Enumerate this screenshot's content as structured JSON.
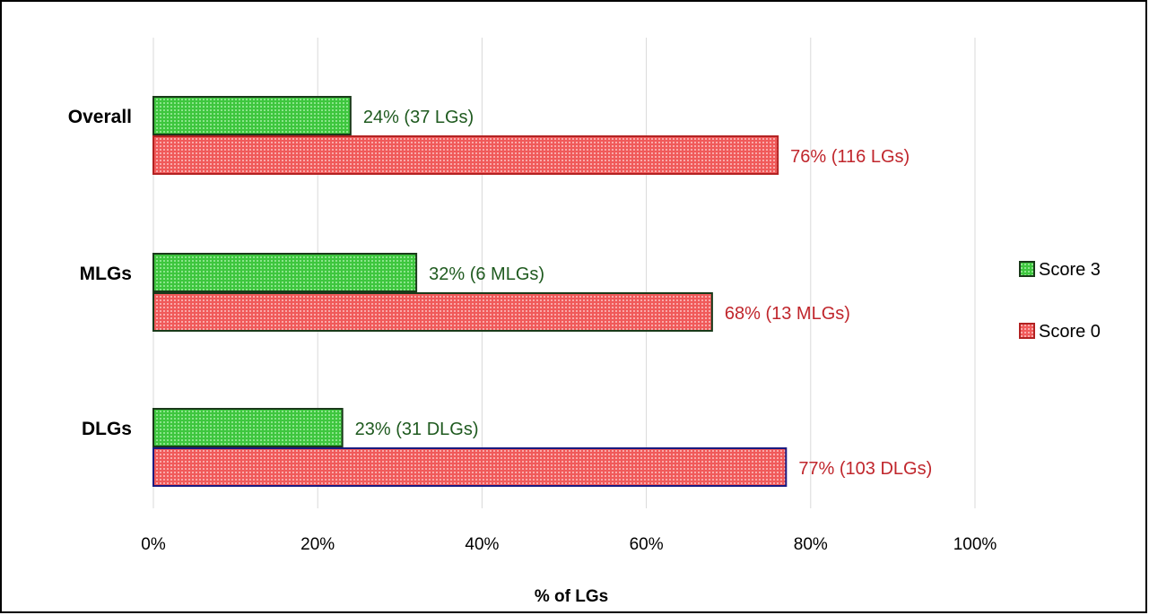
{
  "chart_data": {
    "type": "bar",
    "orientation": "horizontal",
    "categories": [
      "Overall",
      "MLGs",
      "DLGs"
    ],
    "series": [
      {
        "name": "Score 3",
        "color": "#3ec63e",
        "values": [
          24,
          32,
          23
        ],
        "labels": [
          "24% (37 LGs)",
          "32% (6 MLGs)",
          "23% (31 DLGs)"
        ],
        "label_color": "#1f5a1f"
      },
      {
        "name": "Score 0",
        "color": "#f05a5a",
        "values": [
          76,
          68,
          77
        ],
        "labels": [
          "76% (116 LGs)",
          "68% (13 MLGs)",
          "77% (103 DLGs)"
        ],
        "label_color": "#c0262c"
      }
    ],
    "xlabel": "% of LGs",
    "ylabel": "",
    "xlim": [
      0,
      100
    ],
    "x_ticks": [
      0,
      20,
      40,
      60,
      80,
      100
    ],
    "x_tick_labels": [
      "0%",
      "20%",
      "40%",
      "60%",
      "80%",
      "100%"
    ],
    "grid": true,
    "legend_position": "right"
  }
}
